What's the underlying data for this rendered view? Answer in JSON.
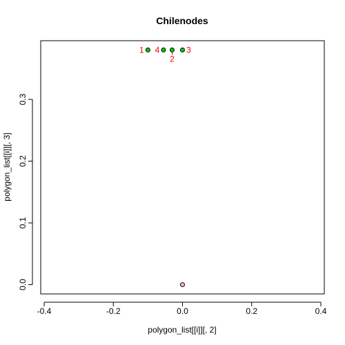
{
  "chart_data": {
    "type": "scatter",
    "title": "Chilenodes",
    "xlabel": "polygon_list[[i]][, 2]",
    "ylabel": "polygon_list[[i]][, 3]",
    "xlim": [
      -0.41,
      0.41
    ],
    "ylim": [
      -0.015,
      0.395
    ],
    "x_ticks": [
      -0.4,
      -0.2,
      0.0,
      0.2,
      0.4
    ],
    "x_tick_labels": [
      "-0.4",
      "-0.2",
      "0.0",
      "0.2",
      "0.4"
    ],
    "y_ticks": [
      0.0,
      0.1,
      0.2,
      0.3
    ],
    "y_tick_labels": [
      "0.0",
      "0.1",
      "0.2",
      "0.3"
    ],
    "grid": false,
    "series": [
      {
        "points": [
          {
            "x": -0.1,
            "y": 0.38,
            "label": "1"
          },
          {
            "x": -0.03,
            "y": 0.38,
            "label": "2"
          },
          {
            "x": 0.0,
            "y": 0.38,
            "label": "3"
          },
          {
            "x": -0.055,
            "y": 0.38,
            "label": "4"
          }
        ],
        "fill_color": "#00cc00",
        "label_color": "#ff0000"
      },
      {
        "points": [
          {
            "x": 0.0,
            "y": 0.0
          }
        ],
        "fill_color": "#ffb6c1"
      }
    ],
    "links": [
      {
        "from": [
          -0.03,
          0.38
        ],
        "to": [
          -0.03,
          0.372
        ]
      }
    ]
  }
}
